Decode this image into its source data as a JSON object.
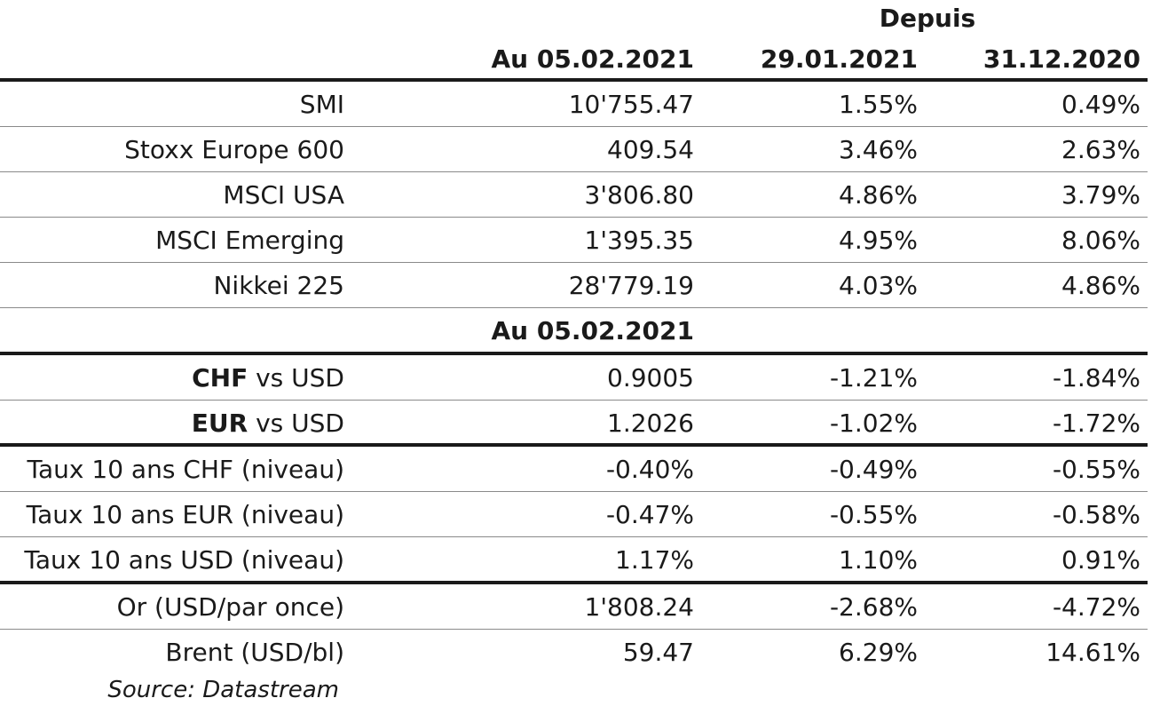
{
  "header": {
    "depuis": "Depuis",
    "col_asof": "Au 05.02.2021",
    "col_week": "29.01.2021",
    "col_ytd": "31.12.2020"
  },
  "equities": [
    {
      "name": "SMI",
      "value": "10'755.47",
      "week": "1.55%",
      "ytd": "0.49%"
    },
    {
      "name": "Stoxx Europe 600",
      "value": "409.54",
      "week": "3.46%",
      "ytd": "2.63%"
    },
    {
      "name": "MSCI USA",
      "value": "3'806.80",
      "week": "4.86%",
      "ytd": "3.79%"
    },
    {
      "name": "MSCI Emerging",
      "value": "1'395.35",
      "week": "4.95%",
      "ytd": "8.06%"
    },
    {
      "name": "Nikkei 225",
      "value": "28'779.19",
      "week": "4.03%",
      "ytd": "4.86%"
    }
  ],
  "subheader": {
    "asof": "Au 05.02.2021"
  },
  "fx": [
    {
      "ccy": "CHF",
      "suffix": " vs USD",
      "value": "0.9005",
      "week": "-1.21%",
      "ytd": "-1.84%"
    },
    {
      "ccy": "EUR",
      "suffix": " vs USD",
      "value": "1.2026",
      "week": "-1.02%",
      "ytd": "-1.72%"
    }
  ],
  "rates": [
    {
      "name": "Taux 10 ans CHF (niveau)",
      "value": "-0.40%",
      "week": "-0.49%",
      "ytd": "-0.55%"
    },
    {
      "name": "Taux 10 ans EUR (niveau)",
      "value": "-0.47%",
      "week": "-0.55%",
      "ytd": "-0.58%"
    },
    {
      "name": "Taux 10 ans USD (niveau)",
      "value": "1.17%",
      "week": "1.10%",
      "ytd": "0.91%"
    }
  ],
  "commodities": [
    {
      "name": "Or (USD/par once)",
      "value": "1'808.24",
      "week": "-2.68%",
      "ytd": "-4.72%"
    },
    {
      "name": "Brent (USD/bl)",
      "value": "59.47",
      "week": "6.29%",
      "ytd": "14.61%"
    }
  ],
  "source": "Source: Datastream"
}
